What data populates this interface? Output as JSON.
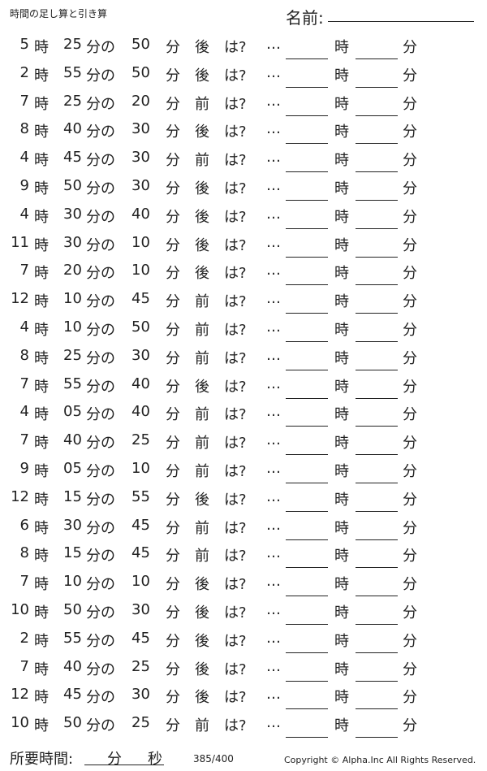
{
  "header": {
    "title": "時間の足し算と引き算",
    "name_label": "名前:"
  },
  "labels": {
    "hour": "時",
    "minute": "分",
    "minute_of": "分の",
    "question": "は?",
    "ellipsis": "…"
  },
  "problems": [
    {
      "h": "5",
      "m": "25",
      "d": "50",
      "dir": "後"
    },
    {
      "h": "2",
      "m": "55",
      "d": "50",
      "dir": "後"
    },
    {
      "h": "7",
      "m": "25",
      "d": "20",
      "dir": "前"
    },
    {
      "h": "8",
      "m": "40",
      "d": "30",
      "dir": "後"
    },
    {
      "h": "4",
      "m": "45",
      "d": "30",
      "dir": "前"
    },
    {
      "h": "9",
      "m": "50",
      "d": "30",
      "dir": "後"
    },
    {
      "h": "4",
      "m": "30",
      "d": "40",
      "dir": "後"
    },
    {
      "h": "11",
      "m": "30",
      "d": "10",
      "dir": "後"
    },
    {
      "h": "7",
      "m": "20",
      "d": "10",
      "dir": "後"
    },
    {
      "h": "12",
      "m": "10",
      "d": "45",
      "dir": "前"
    },
    {
      "h": "4",
      "m": "10",
      "d": "50",
      "dir": "前"
    },
    {
      "h": "8",
      "m": "25",
      "d": "30",
      "dir": "前"
    },
    {
      "h": "7",
      "m": "55",
      "d": "40",
      "dir": "後"
    },
    {
      "h": "4",
      "m": "05",
      "d": "40",
      "dir": "前"
    },
    {
      "h": "7",
      "m": "40",
      "d": "25",
      "dir": "前"
    },
    {
      "h": "9",
      "m": "05",
      "d": "10",
      "dir": "前"
    },
    {
      "h": "12",
      "m": "15",
      "d": "55",
      "dir": "後"
    },
    {
      "h": "6",
      "m": "30",
      "d": "45",
      "dir": "前"
    },
    {
      "h": "8",
      "m": "15",
      "d": "45",
      "dir": "前"
    },
    {
      "h": "7",
      "m": "10",
      "d": "10",
      "dir": "後"
    },
    {
      "h": "10",
      "m": "50",
      "d": "30",
      "dir": "後"
    },
    {
      "h": "2",
      "m": "55",
      "d": "45",
      "dir": "後"
    },
    {
      "h": "7",
      "m": "40",
      "d": "25",
      "dir": "後"
    },
    {
      "h": "12",
      "m": "45",
      "d": "30",
      "dir": "後"
    },
    {
      "h": "10",
      "m": "50",
      "d": "25",
      "dir": "前"
    }
  ],
  "footer": {
    "time_label": "所要時間:",
    "minute": "分",
    "second": "秒",
    "page": "385/400",
    "copyright": "Copyright ©  Alpha.Inc All Rights Reserved."
  }
}
